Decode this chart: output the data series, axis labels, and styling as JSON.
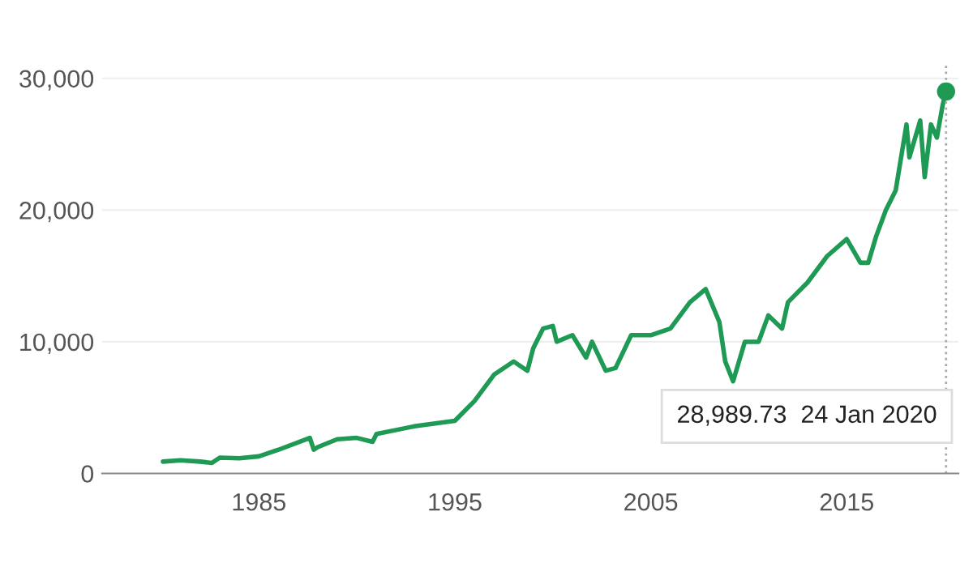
{
  "chart_data": {
    "type": "line",
    "x": [
      1980.1,
      1981.0,
      1982.0,
      1982.6,
      1983.0,
      1984.0,
      1985.0,
      1986.0,
      1987.6,
      1987.8,
      1988.0,
      1989.0,
      1990.0,
      1990.8,
      1991.0,
      1992.0,
      1993.0,
      1994.0,
      1995.0,
      1996.0,
      1997.0,
      1998.0,
      1998.7,
      1999.0,
      1999.5,
      2000.0,
      2000.2,
      2001.0,
      2001.7,
      2002.0,
      2002.7,
      2003.2,
      2004.0,
      2005.0,
      2006.0,
      2007.0,
      2007.8,
      2008.5,
      2008.8,
      2009.2,
      2009.8,
      2010.5,
      2011.0,
      2011.7,
      2012.0,
      2013.0,
      2014.0,
      2015.0,
      2015.7,
      2016.1,
      2016.5,
      2017.0,
      2017.5,
      2018.05,
      2018.2,
      2018.75,
      2018.98,
      2019.3,
      2019.6,
      2019.9,
      2020.07
    ],
    "series": [
      {
        "color": "#1e9a55",
        "values": [
          900,
          1000,
          900,
          800,
          1200,
          1150,
          1300,
          1800,
          2700,
          1800,
          2000,
          2600,
          2700,
          2400,
          3000,
          3300,
          3600,
          3800,
          4000,
          5500,
          7500,
          8500,
          7800,
          9500,
          11000,
          11200,
          10000,
          10500,
          8800,
          10000,
          7800,
          8000,
          10500,
          10500,
          11000,
          13000,
          14000,
          11500,
          8500,
          7000,
          10000,
          10000,
          12000,
          11000,
          13000,
          14500,
          16500,
          17800,
          16000,
          16000,
          18000,
          20000,
          21500,
          26500,
          24000,
          26800,
          22500,
          26500,
          25500,
          28000,
          29000
        ]
      },
      {
        "type": "scatter",
        "color": "#1e9a55",
        "x": [
          2020.07
        ],
        "values": [
          29000
        ]
      }
    ],
    "xlim": [
      1977,
      2020.7
    ],
    "xticks": [
      1985,
      1995,
      2005,
      2015
    ],
    "ylim": [
      0,
      31000
    ],
    "yticks": [
      {
        "value": 0,
        "label": "0"
      },
      {
        "value": 10000,
        "label": "10,000"
      },
      {
        "value": 20000,
        "label": "20,000"
      },
      {
        "value": 30000,
        "label": "30,000"
      }
    ],
    "grid": "y",
    "ref_lines": [
      {
        "axis": "x",
        "value": 2020.07,
        "color": "#aaaaaa",
        "line_style": "dotted"
      }
    ],
    "annotations": [
      "28,989.73  24 Jan 2020"
    ]
  }
}
